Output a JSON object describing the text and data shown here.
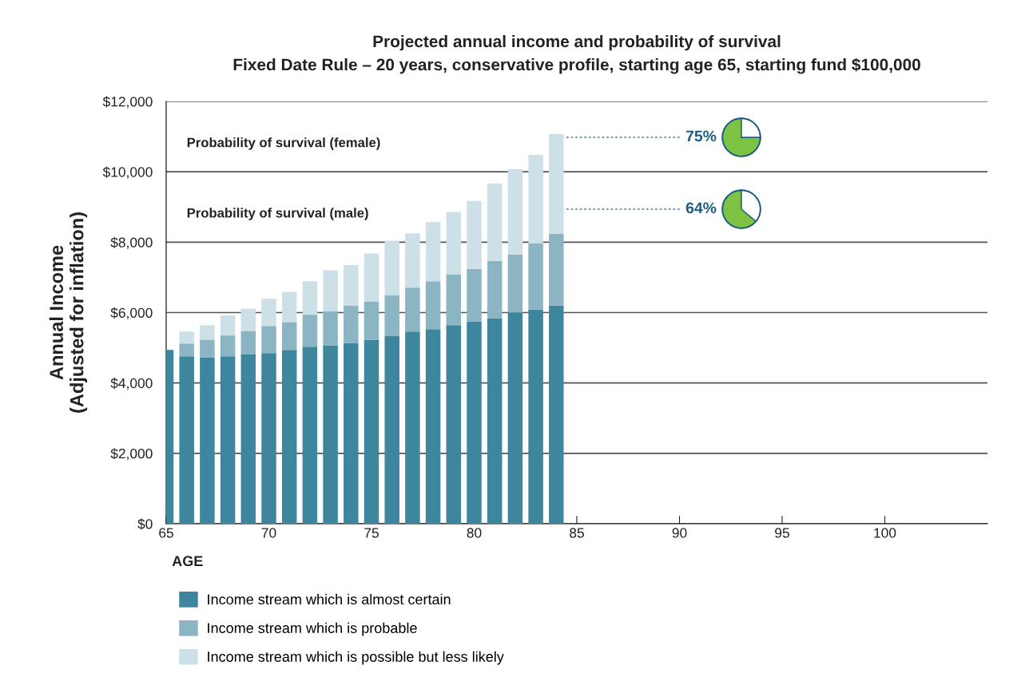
{
  "chart_data": [
    {
      "type": "bar",
      "title": "Projected annual income and probability of survival\nFixed Date Rule – 20 years, conservative profile, starting age 65, starting fund $100,000",
      "xlabel": "AGE",
      "ylabel": "Annual Income\n(Adjusted for inflation)",
      "stacked": true,
      "x": [
        65,
        66,
        67,
        68,
        69,
        70,
        71,
        72,
        73,
        74,
        75,
        76,
        77,
        78,
        79,
        80,
        81,
        82,
        83,
        84
      ],
      "series": [
        {
          "name": "Income stream which is almost certain",
          "color": "#3d869e",
          "values": [
            4940,
            4760,
            4730,
            4760,
            4820,
            4850,
            4940,
            5030,
            5070,
            5140,
            5230,
            5340,
            5460,
            5530,
            5640,
            5750,
            5840,
            6000,
            6090,
            6200
          ]
        },
        {
          "name": "Income stream which is probable",
          "color": "#8bb5c3",
          "values": [
            null,
            360,
            500,
            590,
            660,
            770,
            790,
            910,
            970,
            1060,
            1090,
            1160,
            1250,
            1360,
            1450,
            1490,
            1630,
            1650,
            1880,
            2040
          ]
        },
        {
          "name": "Income stream which is possible but less likely",
          "color": "#cde0e8",
          "values": [
            null,
            340,
            410,
            570,
            630,
            770,
            860,
            950,
            1160,
            1150,
            1360,
            1540,
            1540,
            1680,
            1770,
            1930,
            2200,
            2420,
            2510,
            2830
          ]
        }
      ],
      "xlim": [
        65,
        105
      ],
      "xticks": [
        65,
        70,
        75,
        80,
        85,
        90,
        95,
        100
      ],
      "ylim": [
        0,
        12000
      ],
      "yticks": [
        {
          "value": 0,
          "label": "$0"
        },
        {
          "value": 2000,
          "label": "$2,000"
        },
        {
          "value": 4000,
          "label": "$4,000"
        },
        {
          "value": 6000,
          "label": "$6,000"
        },
        {
          "value": 8000,
          "label": "$8,000"
        },
        {
          "value": 10000,
          "label": "$10,000"
        },
        {
          "value": 12000,
          "label": "$12,000"
        }
      ],
      "grid": "y",
      "legend": "bottom",
      "annotations": [
        "Probability of survival (female)",
        "Probability of survival (male)"
      ]
    },
    {
      "type": "pie",
      "categories": [
        null,
        null
      ],
      "values": [
        75,
        25
      ],
      "colors": [
        "#7dc242",
        "#ffffff"
      ],
      "value_labels": [
        "75%",
        null
      ]
    },
    {
      "type": "pie",
      "categories": [
        null,
        null
      ],
      "values": [
        64,
        36
      ],
      "colors": [
        "#7dc242",
        "#ffffff"
      ],
      "value_labels": [
        "64%",
        null
      ]
    }
  ]
}
